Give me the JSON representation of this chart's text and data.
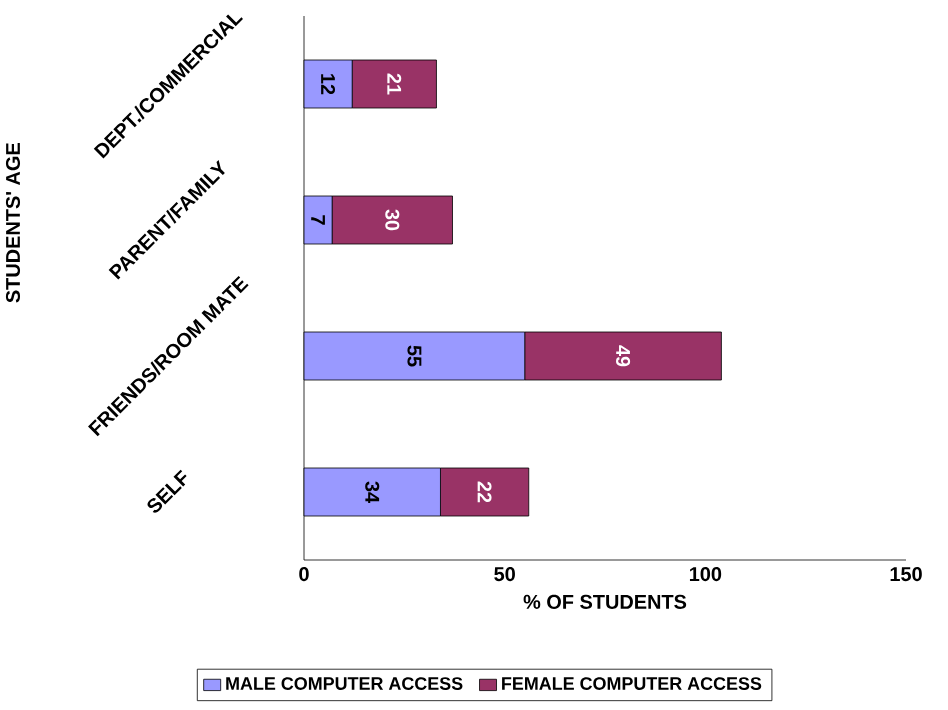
{
  "chart_data": {
    "type": "bar",
    "orientation": "horizontal",
    "stacked": true,
    "xlabel": "% OF STUDENTS",
    "ylabel": "STUDENTS' AGE",
    "categories": [
      "DEPT./COMMERCIAL",
      "PARENT/FAMILY",
      "FRIENDS/ROOM MATE",
      "SELF"
    ],
    "series": [
      {
        "name": "MALE COMPUTER ACCESS",
        "color": "#9999ff",
        "values": [
          12,
          7,
          55,
          34
        ]
      },
      {
        "name": "FEMALE COMPUTER ACCESS",
        "color": "#993366",
        "values": [
          21,
          30,
          49,
          22
        ]
      }
    ],
    "xlim": [
      0,
      150
    ],
    "xticks": [
      0,
      50,
      100,
      150
    ],
    "data_labels": true,
    "legend": "bottom"
  }
}
